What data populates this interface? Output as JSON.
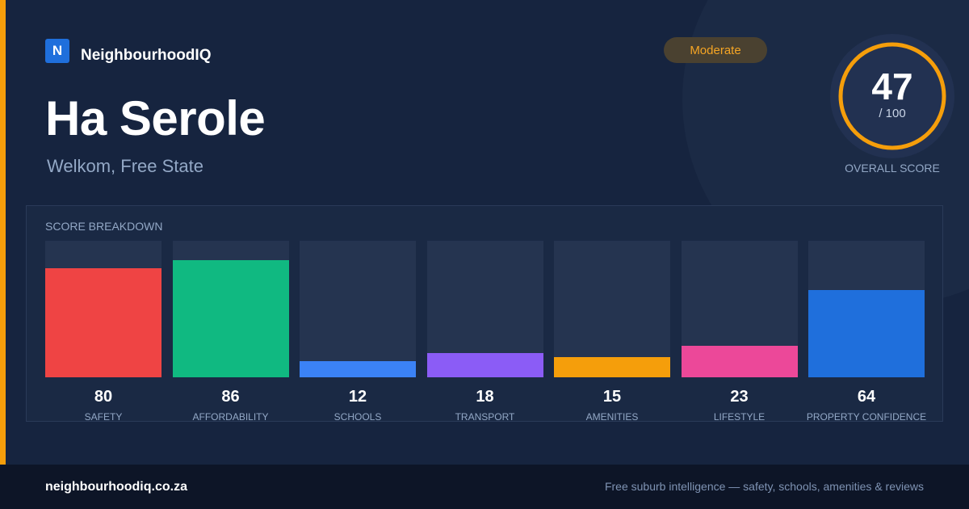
{
  "brand": {
    "logo_letter": "N",
    "name": "NeighbourhoodIQ"
  },
  "place": {
    "name": "Ha Serole",
    "location": "Welkom, Free State"
  },
  "rating": {
    "label": "Moderate"
  },
  "overall": {
    "score": "47",
    "max": "/ 100",
    "caption": "OVERALL SCORE",
    "fraction": 0.47
  },
  "breakdown": {
    "title": "SCORE BREAKDOWN"
  },
  "chart_data": {
    "type": "bar",
    "categories": [
      "SAFETY",
      "AFFORDABILITY",
      "SCHOOLS",
      "TRANSPORT",
      "AMENITIES",
      "LIFESTYLE",
      "PROPERTY CONFIDENCE"
    ],
    "values": [
      80,
      86,
      12,
      18,
      15,
      23,
      64
    ],
    "colors": [
      "#ef4444",
      "#10b981",
      "#3b82f6",
      "#8b5cf6",
      "#f59e0b",
      "#ec4899",
      "#1f6fdc"
    ],
    "ylim": [
      0,
      100
    ],
    "title": "SCORE BREAKDOWN"
  },
  "footer": {
    "url": "neighbourhoodiq.co.za",
    "tagline": "Free suburb intelligence — safety, schools, amenities & reviews"
  },
  "colors": {
    "accent": "#f59e0b",
    "brand": "#1f6fdc",
    "background": "#16243f"
  }
}
